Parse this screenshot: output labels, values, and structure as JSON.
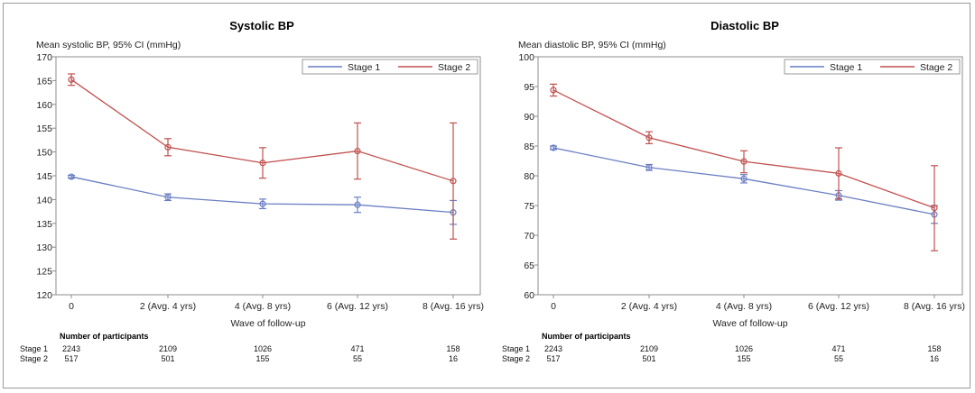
{
  "chart_data": [
    {
      "type": "line",
      "title": "Systolic BP",
      "ylabel": "Mean systolic BP, 95% CI (mmHg)",
      "xlabel": "Wave of follow-up",
      "categories": [
        "0",
        "2 (Avg. 4 yrs)",
        "4 (Avg. 8 yrs)",
        "6 (Avg. 12 yrs)",
        "8 (Avg. 16 yrs)"
      ],
      "ylim": [
        120,
        170
      ],
      "yticks": [
        120,
        125,
        130,
        135,
        140,
        145,
        150,
        155,
        160,
        165,
        170
      ],
      "legend_position": "top-right",
      "series": [
        {
          "name": "Stage 1",
          "color": "#6a7fc4",
          "values": [
            144.8,
            140.5,
            139.1,
            138.9,
            137.3
          ],
          "ci_low": [
            144.5,
            139.8,
            138.1,
            137.3,
            134.8
          ],
          "ci_high": [
            145.1,
            141.2,
            140.1,
            140.5,
            139.8
          ]
        },
        {
          "name": "Stage 2",
          "color": "#c0504d",
          "values": [
            165.2,
            151.0,
            147.7,
            150.2,
            143.9
          ],
          "ci_low": [
            164.0,
            149.2,
            144.5,
            144.3,
            131.7
          ],
          "ci_high": [
            166.4,
            152.8,
            150.9,
            156.1,
            156.1
          ]
        }
      ],
      "participants_label": "Number of participants",
      "participants": [
        {
          "label": "Stage 1",
          "counts": [
            "2243",
            "2109",
            "1026",
            "471",
            "158"
          ]
        },
        {
          "label": "Stage 2",
          "counts": [
            "517",
            "501",
            "155",
            "55",
            "16"
          ]
        }
      ]
    },
    {
      "type": "line",
      "title": "Diastolic BP",
      "ylabel": "Mean diastolic BP, 95% CI (mmHg)",
      "xlabel": "Wave of follow-up",
      "categories": [
        "0",
        "2 (Avg. 4 yrs)",
        "4 (Avg. 8 yrs)",
        "6 (Avg. 12 yrs)",
        "8 (Avg. 16 yrs)"
      ],
      "ylim": [
        60,
        100
      ],
      "yticks": [
        60,
        65,
        70,
        75,
        80,
        85,
        90,
        95,
        100
      ],
      "legend_position": "top-right",
      "series": [
        {
          "name": "Stage 1",
          "color": "#6a7fc4",
          "values": [
            84.7,
            81.4,
            79.5,
            76.7,
            73.5
          ],
          "ci_low": [
            84.4,
            80.9,
            78.8,
            75.9,
            72.0
          ],
          "ci_high": [
            85.0,
            81.9,
            80.2,
            77.5,
            75.0
          ]
        },
        {
          "name": "Stage 2",
          "color": "#c0504d",
          "values": [
            94.4,
            86.4,
            82.4,
            80.4,
            74.6
          ],
          "ci_low": [
            93.4,
            85.4,
            80.5,
            76.1,
            67.4
          ],
          "ci_high": [
            95.4,
            87.4,
            84.2,
            84.7,
            81.7
          ]
        }
      ],
      "participants_label": "Number of participants",
      "participants": [
        {
          "label": "Stage 1",
          "counts": [
            "2243",
            "2109",
            "1026",
            "471",
            "158"
          ]
        },
        {
          "label": "Stage 2",
          "counts": [
            "517",
            "501",
            "155",
            "55",
            "16"
          ]
        }
      ]
    }
  ]
}
